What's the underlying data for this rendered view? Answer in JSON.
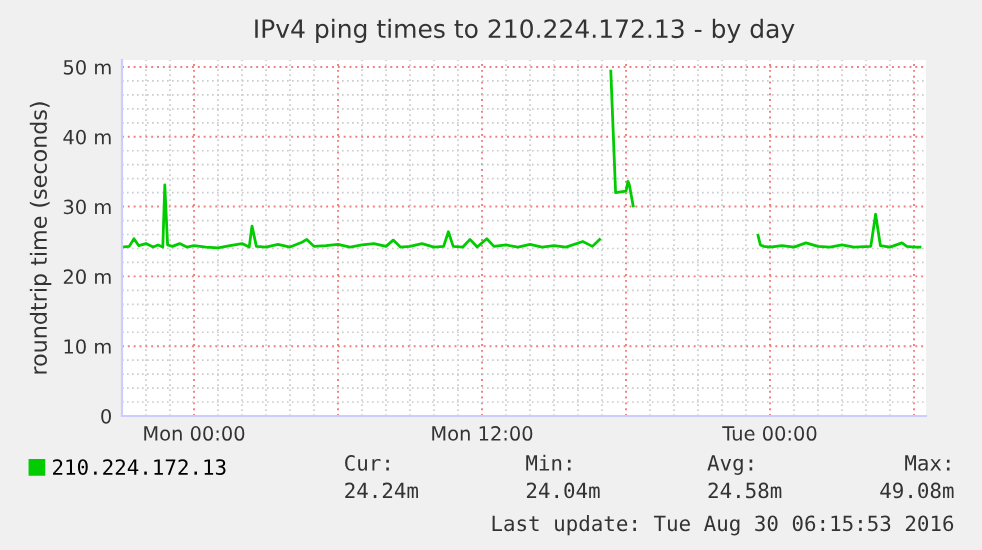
{
  "chart_data": {
    "type": "line",
    "title": "IPv4 ping times to 210.224.172.13 - by day",
    "ylabel": "roundtrip time (seconds)",
    "xlim": [
      "2016-08-28T21:00",
      "2016-08-30T06:30"
    ],
    "ylim": [
      0,
      51
    ],
    "xticks": [
      {
        "value": "2016-08-29T00:00",
        "label": "Mon 00:00"
      },
      {
        "value": "2016-08-29T06:00",
        "label": null
      },
      {
        "value": "2016-08-29T12:00",
        "label": "Mon 12:00"
      },
      {
        "value": "2016-08-29T18:00",
        "label": null
      },
      {
        "value": "2016-08-30T00:00",
        "label": "Tue 00:00"
      },
      {
        "value": "2016-08-30T06:00",
        "label": null
      }
    ],
    "yticks": [
      {
        "value": 0,
        "label": "0"
      },
      {
        "value": 10,
        "label": "10 m"
      },
      {
        "value": 20,
        "label": "20 m"
      },
      {
        "value": 30,
        "label": "30 m"
      },
      {
        "value": 40,
        "label": "40 m"
      },
      {
        "value": 50,
        "label": "50 m"
      }
    ],
    "grid": true,
    "legend": "bottom left",
    "series": [
      {
        "name": "210.224.172.13",
        "color": "#00cc00",
        "x": [
          "2016-08-28T21:00",
          "2016-08-28T21:18",
          "2016-08-28T21:30",
          "2016-08-28T21:42",
          "2016-08-28T22:00",
          "2016-08-28T22:18",
          "2016-08-28T22:30",
          "2016-08-28T22:42",
          "2016-08-28T22:47",
          "2016-08-28T22:54",
          "2016-08-28T23:06",
          "2016-08-28T23:24",
          "2016-08-28T23:42",
          "2016-08-29T00:00",
          "2016-08-29T00:30",
          "2016-08-29T01:00",
          "2016-08-29T01:30",
          "2016-08-29T02:00",
          "2016-08-29T02:18",
          "2016-08-29T02:25",
          "2016-08-29T02:36",
          "2016-08-29T03:00",
          "2016-08-29T03:30",
          "2016-08-29T04:00",
          "2016-08-29T04:30",
          "2016-08-29T04:42",
          "2016-08-29T05:00",
          "2016-08-29T05:30",
          "2016-08-29T06:00",
          "2016-08-29T06:30",
          "2016-08-29T07:00",
          "2016-08-29T07:30",
          "2016-08-29T08:00",
          "2016-08-29T08:18",
          "2016-08-29T08:36",
          "2016-08-29T09:00",
          "2016-08-29T09:30",
          "2016-08-29T10:00",
          "2016-08-29T10:24",
          "2016-08-29T10:36",
          "2016-08-29T10:48",
          "2016-08-29T11:12",
          "2016-08-29T11:30",
          "2016-08-29T11:48",
          "2016-08-29T12:12",
          "2016-08-29T12:30",
          "2016-08-29T13:00",
          "2016-08-29T13:30",
          "2016-08-29T14:00",
          "2016-08-29T14:30",
          "2016-08-29T15:00",
          "2016-08-29T15:30",
          "2016-08-29T16:12",
          "2016-08-29T16:36",
          "2016-08-29T16:54",
          "2016-08-29T17:06",
          "2016-08-29T17:22",
          "2016-08-29T17:34",
          "2016-08-29T18:00",
          "2016-08-29T18:05",
          "2016-08-29T18:08",
          "2016-08-29T18:18",
          "2016-08-29T20:00",
          "2016-08-29T23:30",
          "2016-08-29T23:36",
          "2016-08-29T23:45",
          "2016-08-30T00:00",
          "2016-08-30T00:30",
          "2016-08-30T01:00",
          "2016-08-30T01:30",
          "2016-08-30T02:00",
          "2016-08-30T02:30",
          "2016-08-30T03:00",
          "2016-08-30T03:30",
          "2016-08-30T04:12",
          "2016-08-30T04:24",
          "2016-08-30T04:36",
          "2016-08-30T05:00",
          "2016-08-30T05:30",
          "2016-08-30T05:42",
          "2016-08-30T06:00",
          "2016-08-30T06:15"
        ],
        "values": [
          24.2,
          24.3,
          25.4,
          24.4,
          24.7,
          24.2,
          24.5,
          24.2,
          33.1,
          24.5,
          24.3,
          24.7,
          24.2,
          24.4,
          24.2,
          24.1,
          24.4,
          24.7,
          24.2,
          27.2,
          24.3,
          24.2,
          24.6,
          24.2,
          24.9,
          25.3,
          24.3,
          24.4,
          24.6,
          24.2,
          24.5,
          24.7,
          24.3,
          25.2,
          24.2,
          24.3,
          24.7,
          24.2,
          24.3,
          26.4,
          24.3,
          24.2,
          25.3,
          24.2,
          25.4,
          24.3,
          24.5,
          24.2,
          24.6,
          24.2,
          24.4,
          24.2,
          25.0,
          24.3,
          25.3,
          null,
          49.4,
          32.0,
          32.2,
          33.6,
          33.2,
          30.1,
          null,
          25.9,
          24.5,
          24.3,
          24.2,
          24.4,
          24.2,
          24.8,
          24.3,
          24.2,
          24.5,
          24.2,
          24.3,
          28.9,
          24.4,
          24.2,
          24.8,
          24.3,
          24.2,
          24.2
        ]
      }
    ],
    "annotations": [
      "Cur:",
      "24.24m",
      "Min:",
      "24.04m",
      "Avg:",
      "24.58m",
      "Max:",
      "49.08m",
      "Last update: Tue Aug 30 06:15:53 2016"
    ]
  }
}
